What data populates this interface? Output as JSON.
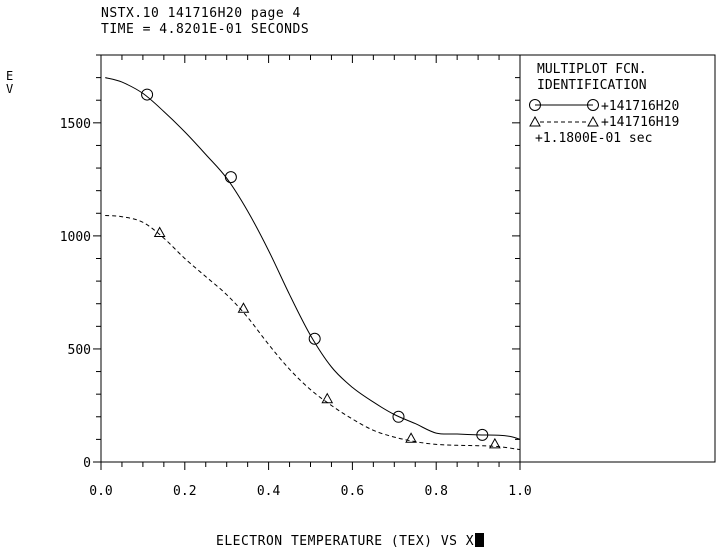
{
  "header": {
    "line1": "NSTX.10 141716H20 page 4",
    "line2": "TIME = 4.8201E-01 SECONDS"
  },
  "ylabel": "E\nV",
  "xlabel_full": "ELECTRON TEMPERATURE (TEX) VS X",
  "legend": {
    "title1": "MULTIPLOT FCN.",
    "title2": "IDENTIFICATION",
    "entry1": "+141716H20",
    "entry2": "+141716H19",
    "entry2_note": "+1.1800E-01 sec"
  },
  "chart_data": {
    "type": "line",
    "title": "ELECTRON TEMPERATURE (TEX) VS X",
    "xlabel": "X",
    "ylabel": "EV",
    "xlim": [
      0,
      1
    ],
    "ylim": [
      0,
      1800
    ],
    "xticks": [
      "0.0",
      "0.2",
      "0.4",
      "0.6",
      "0.8",
      "1.0"
    ],
    "xtick_values": [
      0,
      0.2,
      0.4,
      0.6,
      0.8,
      1.0
    ],
    "yticks": [
      "0",
      "500",
      "1000",
      "1500"
    ],
    "ytick_values": [
      0,
      500,
      1000,
      1500
    ],
    "series": [
      {
        "name": "+141716H20",
        "marker": "circle",
        "linestyle": "solid",
        "x": [
          0.01,
          0.05,
          0.1,
          0.15,
          0.2,
          0.25,
          0.3,
          0.35,
          0.4,
          0.45,
          0.5,
          0.55,
          0.6,
          0.65,
          0.7,
          0.75,
          0.8,
          0.85,
          0.9,
          0.95,
          0.98,
          1.0
        ],
        "y": [
          1700,
          1680,
          1630,
          1550,
          1460,
          1360,
          1255,
          1110,
          935,
          740,
          560,
          420,
          330,
          265,
          210,
          170,
          128,
          124,
          120,
          118,
          112,
          100
        ],
        "marker_x": [
          0.11,
          0.31,
          0.51,
          0.71,
          0.91
        ],
        "marker_y": [
          1625,
          1260,
          545,
          200,
          120
        ]
      },
      {
        "name": "+141716H19",
        "marker": "triangle",
        "linestyle": "dashed",
        "x": [
          0.01,
          0.05,
          0.1,
          0.15,
          0.2,
          0.25,
          0.3,
          0.35,
          0.4,
          0.45,
          0.5,
          0.55,
          0.6,
          0.65,
          0.7,
          0.75,
          0.8,
          0.85,
          0.9,
          0.95,
          1.0
        ],
        "y": [
          1090,
          1085,
          1060,
          990,
          900,
          820,
          740,
          640,
          520,
          410,
          320,
          250,
          190,
          140,
          110,
          90,
          78,
          74,
          72,
          68,
          55
        ],
        "marker_x": [
          0.14,
          0.34,
          0.54,
          0.74,
          0.94
        ],
        "marker_y": [
          1015,
          680,
          280,
          105,
          80
        ]
      }
    ],
    "grid": false,
    "legend_position": "right panel"
  }
}
